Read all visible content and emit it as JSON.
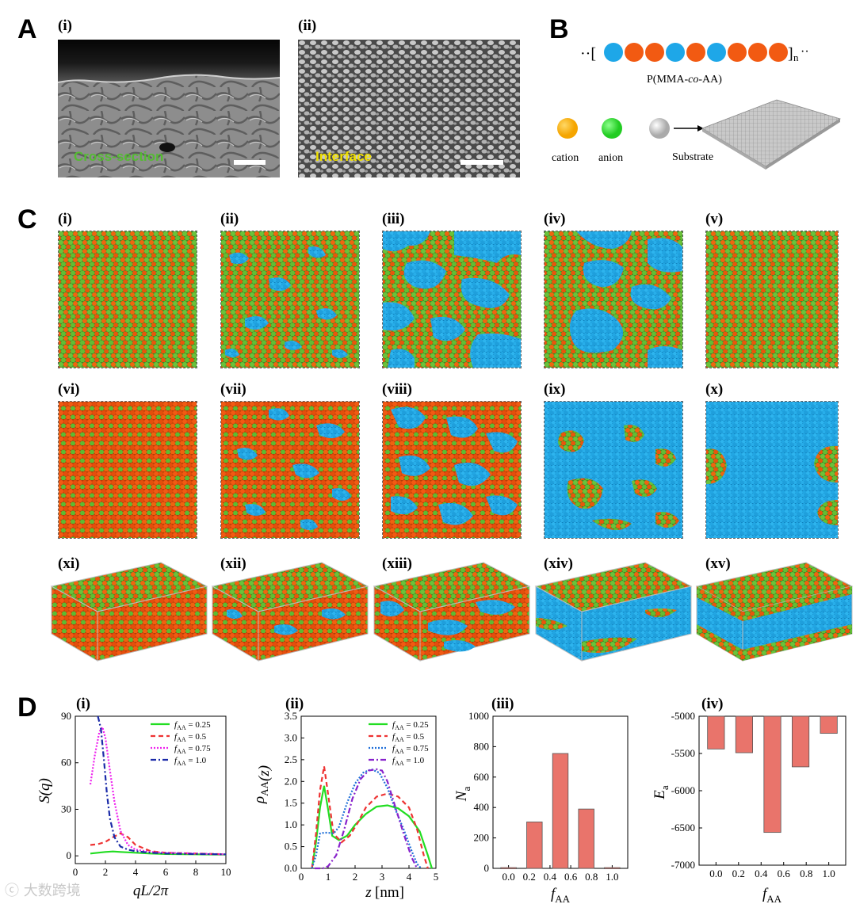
{
  "panels": {
    "A": {
      "letter": "A",
      "i": {
        "label": "(i)",
        "caption": "Cross-section"
      },
      "ii": {
        "label": "(ii)",
        "caption": "Interface"
      }
    },
    "B": {
      "letter": "B",
      "polymer_prefix": "··[",
      "polymer_suffix": "]",
      "polymer_n": "n",
      "polymer_tail": "··",
      "polymer_name_1": "P(MMA-",
      "polymer_name_co": "co",
      "polymer_name_2": "-AA)",
      "cation_label": "cation",
      "anion_label": "anion",
      "substrate_label": "Substrate",
      "colors": {
        "blue": "#1ea7e8",
        "orange": "#f25a12",
        "cation": "#f5a500",
        "anion": "#22cc22",
        "substrate": "#bbbbbb"
      }
    },
    "C": {
      "letter": "C",
      "row1": [
        "(i)",
        "(ii)",
        "(iii)",
        "(iv)",
        "(v)"
      ],
      "row2": [
        "(vi)",
        "(vii)",
        "(viii)",
        "(ix)",
        "(x)"
      ],
      "row3": [
        "(xi)",
        "(xii)",
        "(xiii)",
        "(xiv)",
        "(xv)"
      ]
    },
    "D": {
      "letter": "D",
      "i": "(i)",
      "ii": "(ii)",
      "iii": "(iii)",
      "iv": "(iv)"
    }
  },
  "watermark": "大数跨境",
  "chart_data": [
    {
      "type": "line",
      "title": "(i)",
      "xlabel": "qL/2π",
      "ylabel": "S(q)",
      "xlim": [
        0,
        10
      ],
      "ylim": [
        -5,
        90
      ],
      "xticks": [
        0,
        2,
        4,
        6,
        8,
        10
      ],
      "yticks": [
        0,
        30,
        60,
        90
      ],
      "series": [
        {
          "name": "f_AA = 0.25",
          "legend_var": "f",
          "legend_sub": "AA",
          "legend_val": "= 0.25",
          "color": "#22dd22",
          "style": "solid",
          "x": [
            1.0,
            1.5,
            2.0,
            2.5,
            3.0,
            4.0,
            5.0,
            6.0,
            8.0,
            10.0
          ],
          "y": [
            1.5,
            2.0,
            2.5,
            2.8,
            2.5,
            2.0,
            1.5,
            1.2,
            1.0,
            0.8
          ]
        },
        {
          "name": "f_AA = 0.5",
          "legend_var": "f",
          "legend_sub": "AA",
          "legend_val": "= 0.5",
          "color": "#ee3333",
          "style": "dash",
          "x": [
            1.0,
            1.5,
            2.0,
            2.5,
            3.0,
            3.5,
            4.0,
            5.0,
            6.0,
            8.0,
            10.0
          ],
          "y": [
            7,
            7.5,
            9,
            12,
            14.5,
            12,
            7,
            3,
            2,
            1.5,
            1.0
          ]
        },
        {
          "name": "f_AA = 0.75",
          "legend_var": "f",
          "legend_sub": "AA",
          "legend_val": "= 0.75",
          "color": "#ee22ee",
          "style": "dot",
          "x": [
            1.0,
            1.3,
            1.6,
            1.8,
            2.0,
            2.3,
            2.6,
            3.0,
            3.5,
            4.0,
            5.0,
            6.0,
            8.0,
            10.0
          ],
          "y": [
            46,
            65,
            80,
            83,
            76,
            55,
            35,
            16,
            7,
            4,
            2.5,
            2,
            1.5,
            1.0
          ]
        },
        {
          "name": "f_AA = 1.0",
          "legend_var": "f",
          "legend_sub": "AA",
          "legend_val": "= 1.0",
          "color": "#1a2aa8",
          "style": "dashdot",
          "x": [
            1.5,
            1.7,
            1.9,
            2.1,
            2.3,
            2.6,
            3.0,
            3.5,
            4.0,
            5.0,
            6.0,
            8.0,
            10.0
          ],
          "y": [
            90,
            82,
            62,
            40,
            24,
            12,
            6,
            4,
            3,
            2,
            1.5,
            1.2,
            1.0
          ]
        }
      ]
    },
    {
      "type": "line",
      "title": "(ii)",
      "xlabel": "z[nm]",
      "ylabel": "ρ_AA(z)",
      "xlim": [
        0,
        5
      ],
      "ylim": [
        0,
        3.5
      ],
      "xticks": [
        0,
        1,
        2,
        3,
        4,
        5
      ],
      "yticks": [
        0.0,
        0.5,
        1.0,
        1.5,
        2.0,
        2.5,
        3.0,
        3.5
      ],
      "series": [
        {
          "name": "f_AA = 0.25",
          "legend_var": "f",
          "legend_sub": "AA",
          "legend_val": "= 0.25",
          "color": "#22dd22",
          "style": "solid",
          "x": [
            0.4,
            0.55,
            0.7,
            0.85,
            1.0,
            1.15,
            1.4,
            1.7,
            2.0,
            2.4,
            2.8,
            3.2,
            3.6,
            4.0,
            4.4,
            4.7,
            4.85
          ],
          "y": [
            0,
            0.6,
            1.4,
            1.9,
            1.35,
            0.75,
            0.65,
            0.75,
            1.0,
            1.25,
            1.42,
            1.45,
            1.38,
            1.2,
            0.85,
            0.3,
            0.0
          ]
        },
        {
          "name": "f_AA = 0.5",
          "legend_var": "f",
          "legend_sub": "AA",
          "legend_val": "= 0.5",
          "color": "#ee3333",
          "style": "dash",
          "x": [
            0.4,
            0.55,
            0.7,
            0.85,
            1.0,
            1.2,
            1.5,
            1.8,
            2.1,
            2.4,
            2.8,
            3.2,
            3.6,
            4.0,
            4.3,
            4.55,
            4.7
          ],
          "y": [
            0,
            0.8,
            1.8,
            2.35,
            1.7,
            0.8,
            0.6,
            0.75,
            1.05,
            1.4,
            1.65,
            1.72,
            1.65,
            1.4,
            0.9,
            0.3,
            0.0
          ]
        },
        {
          "name": "f_AA = 0.75",
          "legend_var": "f",
          "legend_sub": "AA",
          "legend_val": "= 0.75",
          "color": "#1e6ed8",
          "style": "dot",
          "x": [
            0.4,
            0.55,
            0.7,
            0.85,
            1.0,
            1.2,
            1.4,
            1.7,
            2.0,
            2.3,
            2.6,
            2.9,
            3.2,
            3.5,
            3.8,
            4.1,
            4.3,
            4.45
          ],
          "y": [
            0,
            0.3,
            0.8,
            0.82,
            0.82,
            0.8,
            0.95,
            1.5,
            1.95,
            2.2,
            2.28,
            2.2,
            1.85,
            1.35,
            0.9,
            0.4,
            0.1,
            0.0
          ]
        },
        {
          "name": "f_AA = 1.0",
          "legend_var": "f",
          "legend_sub": "AA",
          "legend_val": "= 1.0",
          "color": "#8822cc",
          "style": "dashdot",
          "x": [
            0.5,
            0.8,
            1.0,
            1.3,
            1.6,
            1.9,
            2.2,
            2.5,
            2.8,
            3.0,
            3.2,
            3.5,
            3.8,
            4.1,
            4.3
          ],
          "y": [
            0,
            0.0,
            0.05,
            0.3,
            0.9,
            1.6,
            2.05,
            2.25,
            2.28,
            2.25,
            2.0,
            1.4,
            0.8,
            0.25,
            0.0
          ]
        }
      ]
    },
    {
      "type": "bar",
      "title": "(iii)",
      "xlabel": "f_AA",
      "ylabel": "N_a",
      "categories": [
        "0.0",
        "0.25",
        "0.5",
        "0.75",
        "1.0"
      ],
      "x": [
        0.0,
        0.25,
        0.5,
        0.75,
        1.0
      ],
      "values": [
        5,
        305,
        755,
        390,
        5
      ],
      "xlim": [
        -0.15,
        1.15
      ],
      "ylim": [
        0,
        1000
      ],
      "xticks": [
        0.0,
        0.2,
        0.4,
        0.6,
        0.8,
        1.0
      ],
      "yticks": [
        0,
        200,
        400,
        600,
        800,
        1000
      ],
      "color": "#e9746b"
    },
    {
      "type": "bar",
      "title": "(iv)",
      "xlabel": "f_AA",
      "ylabel": "E_a",
      "categories": [
        "0.0",
        "0.25",
        "0.5",
        "0.75",
        "1.0"
      ],
      "x": [
        0.0,
        0.25,
        0.5,
        0.75,
        1.0
      ],
      "values": [
        -5440,
        -5490,
        -6560,
        -5680,
        -5230
      ],
      "baseline": -5000,
      "xlim": [
        -0.15,
        1.15
      ],
      "ylim": [
        -7000,
        -5000
      ],
      "xticks": [
        0.0,
        0.2,
        0.4,
        0.6,
        0.8,
        1.0
      ],
      "yticks": [
        -5000,
        -5500,
        -6000,
        -6500,
        -7000
      ],
      "color": "#e9746b"
    }
  ]
}
